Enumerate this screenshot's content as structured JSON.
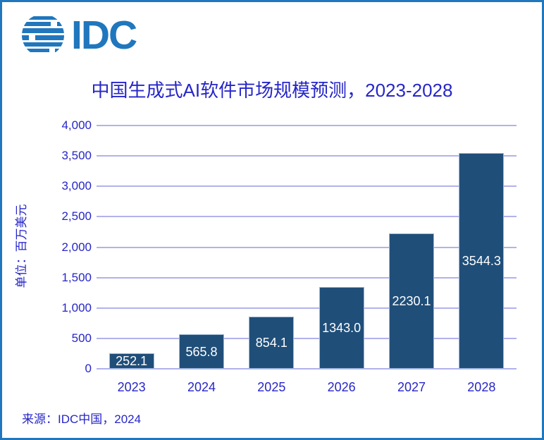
{
  "logo": {
    "text": "IDC",
    "globe_icon": "idc-striped-globe",
    "color": "#2077bd"
  },
  "colors": {
    "frame_border": "#2077bd",
    "text_blue": "#2626c9",
    "gridline": "#b2b2ec",
    "bar_fill": "#1f4e79",
    "bar_value_text": "#ffffff",
    "background": "#ffffff"
  },
  "chart_data": {
    "type": "bar",
    "title": "中国生成式AI软件市场规模预测，2023-2028",
    "categories": [
      "2023",
      "2024",
      "2025",
      "2026",
      "2027",
      "2028"
    ],
    "values": [
      252.1,
      565.8,
      854.1,
      1343.0,
      2230.1,
      3544.3
    ],
    "value_labels": [
      "252.1",
      "565.8",
      "854.1",
      "1343.0",
      "2230.1",
      "3544.3"
    ],
    "value_label_position": "center-inside",
    "xlabel": "",
    "ylabel": "单位：百万美元",
    "ylim": [
      0,
      4000
    ],
    "ytick_step": 500,
    "ytick_labels": [
      "0",
      "500",
      "1,000",
      "1,500",
      "2,000",
      "2,500",
      "3,000",
      "3,500",
      "4,000"
    ],
    "grid": "horizontal",
    "legend": "none",
    "source": "来源：IDC中国，2024"
  }
}
